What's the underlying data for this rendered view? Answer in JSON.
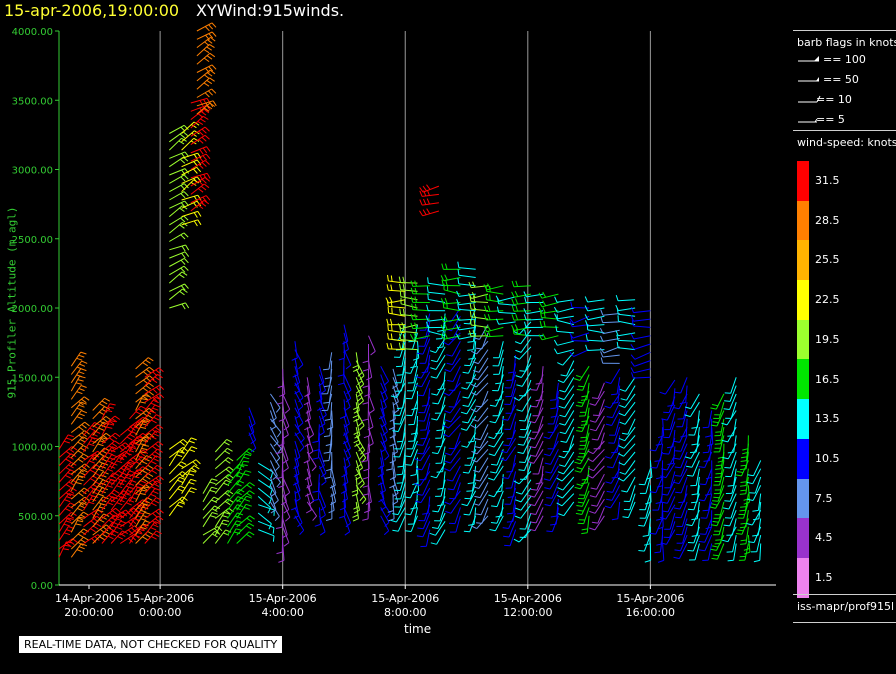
{
  "header": {
    "datetime": "15-apr-2006,19:00:00",
    "product": "XYWind:915winds."
  },
  "chart_data": {
    "type": "scatter",
    "subtype": "wind-barbs",
    "title": "15-apr-2006,19:00:00  XYWind:915winds.",
    "xlabel": "time",
    "ylabel": "915 Profiler Altitude (m agl)",
    "ylim": [
      0,
      4000
    ],
    "y_ticks": [
      "0.00",
      "500.00",
      "1000.00",
      "1500.00",
      "2000.00",
      "2500.00",
      "3000.00",
      "3500.00",
      "4000.00"
    ],
    "xlim_hours": [
      -3.3,
      20.1
    ],
    "x_ticks": [
      {
        "date": "14-Apr-2006",
        "time": "20:00:00",
        "hours": -4
      },
      {
        "date": "15-Apr-2006",
        "time": "0:00:00",
        "hours": 0
      },
      {
        "date": "15-Apr-2006",
        "time": "4:00:00",
        "hours": 4
      },
      {
        "date": "15-Apr-2006",
        "time": "8:00:00",
        "hours": 8
      },
      {
        "date": "15-Apr-2006",
        "time": "12:00:00",
        "hours": 12
      },
      {
        "date": "15-Apr-2006",
        "time": "16:00:00",
        "hours": 16
      }
    ],
    "grid": "vertical",
    "profile_segments": [
      [
        -3.3,
        200,
        1000,
        31.5,
        40
      ],
      [
        -2.9,
        200,
        1600,
        28.5,
        40
      ],
      [
        -2.5,
        300,
        1100,
        31.5,
        45
      ],
      [
        -2.2,
        300,
        1300,
        28.5,
        40
      ],
      [
        -1.9,
        300,
        1200,
        31.5,
        40
      ],
      [
        -1.6,
        300,
        1000,
        31.5,
        45
      ],
      [
        -1.3,
        300,
        1100,
        31.5,
        45
      ],
      [
        -1.0,
        300,
        1200,
        31.5,
        40
      ],
      [
        -0.8,
        300,
        1600,
        28.5,
        40
      ],
      [
        -0.5,
        300,
        1500,
        31.5,
        45
      ],
      [
        0.3,
        2000,
        3300,
        19.5,
        60
      ],
      [
        0.3,
        500,
        1000,
        22.5,
        45
      ],
      [
        0.7,
        2600,
        3300,
        22.5,
        60
      ],
      [
        0.7,
        600,
        1000,
        22.5,
        45
      ],
      [
        1.0,
        2700,
        3500,
        31.5,
        60
      ],
      [
        1.2,
        3400,
        4000,
        28.5,
        60
      ],
      [
        1.4,
        300,
        700,
        19.5,
        45
      ],
      [
        1.8,
        300,
        1000,
        19.5,
        40
      ],
      [
        2.2,
        300,
        800,
        16.5,
        35
      ],
      [
        2.5,
        300,
        900,
        16.5,
        35
      ],
      [
        2.9,
        1100,
        1300,
        10.5,
        150
      ],
      [
        3.2,
        400,
        900,
        13.5,
        120
      ],
      [
        3.6,
        600,
        1400,
        7.5,
        150
      ],
      [
        4.0,
        300,
        1600,
        4.5,
        170
      ],
      [
        4.4,
        500,
        1800,
        10.5,
        160
      ],
      [
        4.8,
        600,
        1500,
        4.5,
        160
      ],
      [
        5.2,
        500,
        1600,
        10.5,
        170
      ],
      [
        5.6,
        600,
        1700,
        7.5,
        180
      ],
      [
        6.0,
        500,
        1900,
        10.5,
        170
      ],
      [
        6.4,
        600,
        1700,
        19.5,
        160
      ],
      [
        6.8,
        600,
        1800,
        4.5,
        170
      ],
      [
        7.2,
        500,
        1600,
        10.5,
        160
      ],
      [
        7.6,
        600,
        1600,
        7.5,
        170
      ],
      [
        8.0,
        500,
        1900,
        13.5,
        200
      ],
      [
        8.0,
        1700,
        2200,
        22.5,
        270
      ],
      [
        8.4,
        500,
        1900,
        13.5,
        190
      ],
      [
        8.4,
        1700,
        2200,
        19.5,
        270
      ],
      [
        8.8,
        400,
        2000,
        10.5,
        200
      ],
      [
        8.8,
        1800,
        2200,
        16.5,
        270
      ],
      [
        9.1,
        2700,
        2900,
        31.5,
        250
      ],
      [
        9.3,
        400,
        2000,
        13.5,
        200
      ],
      [
        9.3,
        1800,
        2200,
        13.5,
        270
      ],
      [
        9.8,
        500,
        2000,
        10.5,
        210
      ],
      [
        9.8,
        1800,
        2300,
        16.5,
        270
      ],
      [
        10.3,
        500,
        2000,
        13.5,
        200
      ],
      [
        10.3,
        1800,
        2300,
        13.5,
        270
      ],
      [
        10.7,
        500,
        1900,
        7.5,
        210
      ],
      [
        10.7,
        1800,
        2200,
        19.5,
        270
      ],
      [
        11.2,
        500,
        1800,
        13.5,
        200
      ],
      [
        11.2,
        1800,
        2200,
        16.5,
        270
      ],
      [
        11.6,
        400,
        1700,
        10.5,
        200
      ],
      [
        11.6,
        1900,
        2100,
        13.5,
        270
      ],
      [
        12.1,
        400,
        1900,
        13.5,
        210
      ],
      [
        12.1,
        1800,
        2200,
        16.5,
        270
      ],
      [
        12.5,
        500,
        1600,
        4.5,
        200
      ],
      [
        12.5,
        1800,
        2100,
        13.5,
        270
      ],
      [
        13.0,
        500,
        1500,
        10.5,
        200
      ],
      [
        13.0,
        1800,
        2100,
        16.5,
        270
      ],
      [
        13.5,
        600,
        1700,
        13.5,
        210
      ],
      [
        13.5,
        1700,
        2100,
        13.5,
        270
      ],
      [
        14.0,
        500,
        1600,
        16.5,
        200
      ],
      [
        14.0,
        1700,
        2000,
        10.5,
        260
      ],
      [
        14.5,
        500,
        1500,
        4.5,
        210
      ],
      [
        14.5,
        1700,
        2100,
        13.5,
        270
      ],
      [
        15.0,
        600,
        1600,
        10.5,
        200
      ],
      [
        15.0,
        1600,
        2000,
        7.5,
        260
      ],
      [
        15.5,
        600,
        1500,
        13.5,
        210
      ],
      [
        15.5,
        1700,
        2100,
        13.5,
        270
      ],
      [
        16.0,
        300,
        900,
        13.5,
        190
      ],
      [
        16.0,
        1500,
        2000,
        10.5,
        260
      ],
      [
        16.4,
        300,
        1200,
        10.5,
        190
      ],
      [
        16.8,
        400,
        1500,
        10.5,
        200
      ],
      [
        17.2,
        300,
        1500,
        10.5,
        195
      ],
      [
        17.6,
        300,
        1400,
        13.5,
        200
      ],
      [
        18.0,
        300,
        1300,
        10.5,
        190
      ],
      [
        18.4,
        300,
        1400,
        16.5,
        195
      ],
      [
        18.8,
        300,
        1500,
        13.5,
        200
      ],
      [
        19.2,
        300,
        1100,
        16.5,
        190
      ],
      [
        19.6,
        300,
        900,
        13.5,
        195
      ]
    ],
    "legend": {
      "barb_header": "barb flags in knots",
      "barb_items": [
        "== 100",
        "== 50",
        "== 10",
        "== 5"
      ],
      "speed_header": "wind-speed: knots",
      "speed_bins": [
        {
          "label": "31.5",
          "color": "#ff0000"
        },
        {
          "label": "28.5",
          "color": "#ff7f00"
        },
        {
          "label": "25.5",
          "color": "#ffb300"
        },
        {
          "label": "22.5",
          "color": "#ffff00"
        },
        {
          "label": "19.5",
          "color": "#9cff2e"
        },
        {
          "label": "16.5",
          "color": "#00e600"
        },
        {
          "label": "13.5",
          "color": "#00ffff"
        },
        {
          "label": "10.5",
          "color": "#0000ff"
        },
        {
          "label": "7.5",
          "color": "#6495ed"
        },
        {
          "label": "4.5",
          "color": "#9932cc"
        },
        {
          "label": "1.5",
          "color": "#ee82ee"
        }
      ],
      "source": "iss-mapr/prof915l"
    }
  },
  "footer": {
    "qc_notice": "REAL-TIME DATA, NOT CHECKED FOR QUALITY"
  }
}
